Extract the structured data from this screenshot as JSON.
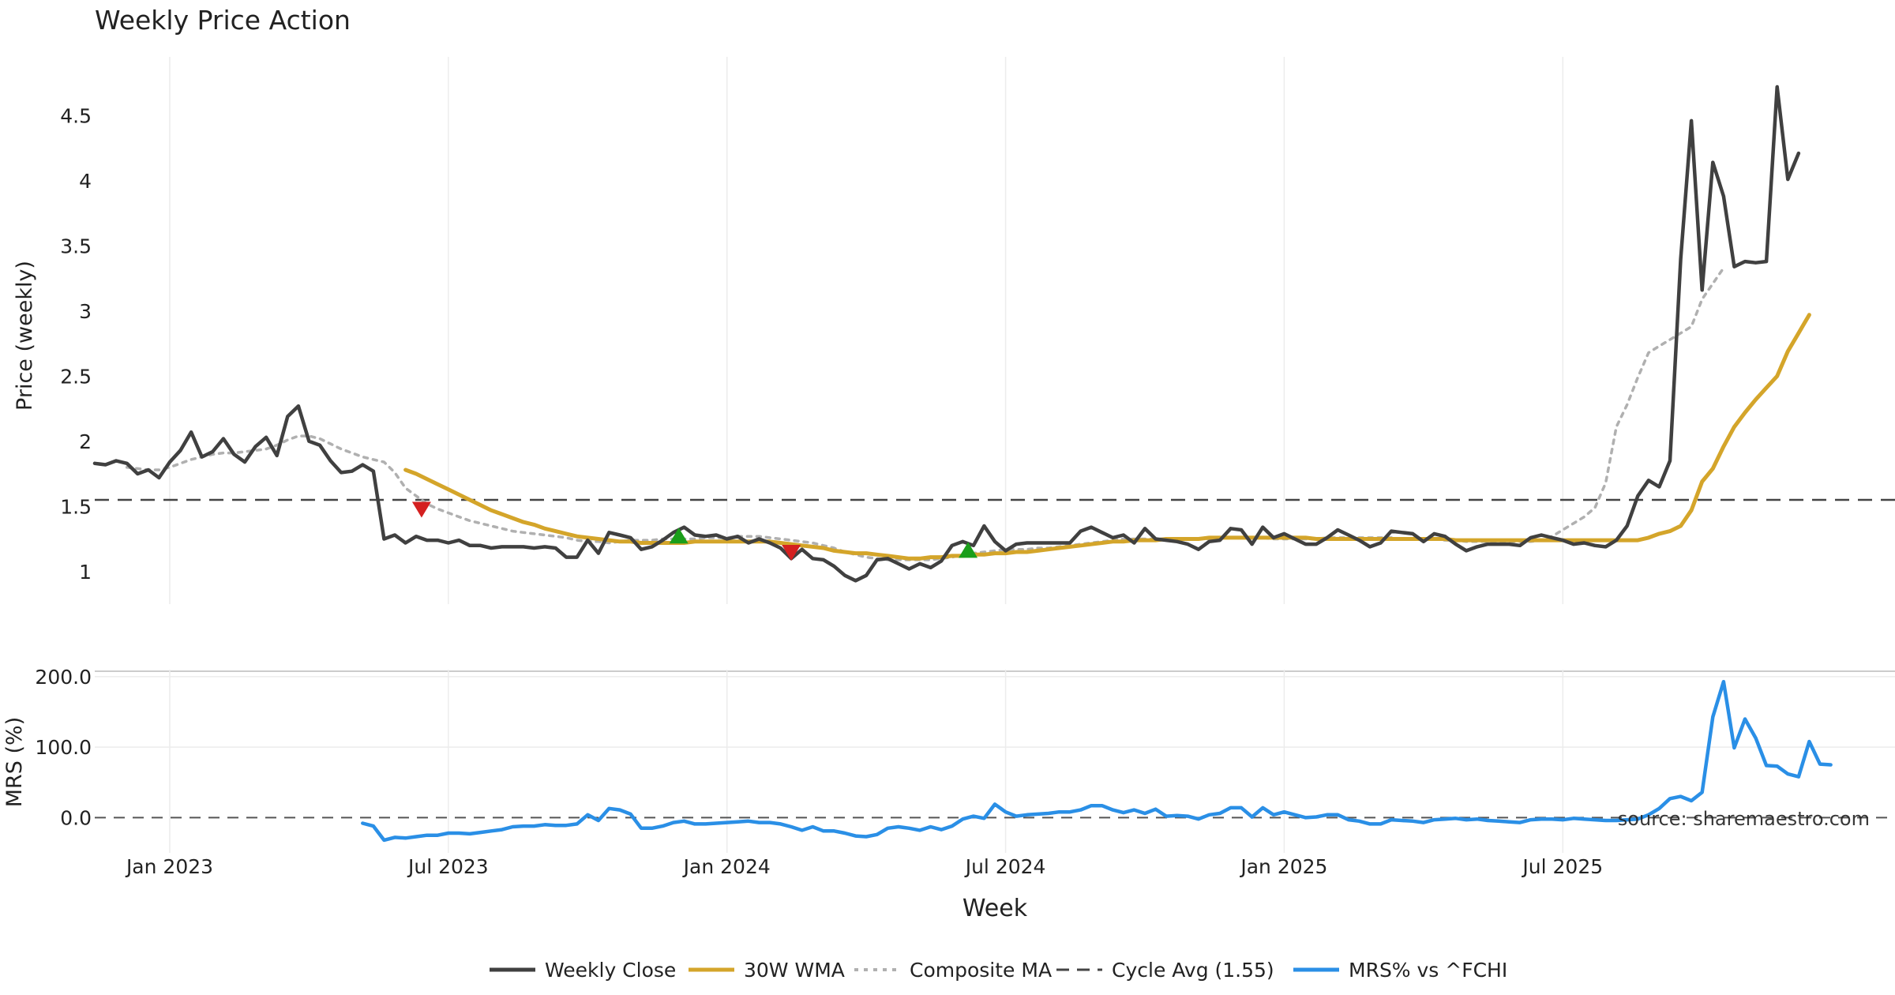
{
  "chart_data": {
    "type": "line",
    "title": "Weekly Price Action",
    "xlabel": "Week",
    "x_ticks": [
      "Jan 2023",
      "Jul 2023",
      "Jan 2024",
      "Jul 2024",
      "Jan 2025",
      "Jul 2025"
    ],
    "x_tick_weeks": [
      5,
      31,
      57,
      83,
      109,
      135
    ],
    "x_range_weeks": [
      -2,
      166
    ],
    "watermark": "source: sharemaestro.com",
    "panels": [
      {
        "id": "price",
        "ylabel": "Price (weekly)",
        "ylim": [
          0.75,
          4.95
        ],
        "y_ticks": [
          1,
          1.5,
          2,
          2.5,
          3,
          3.5,
          4,
          4.5
        ],
        "y_tick_labels": [
          "1",
          "1.5",
          "2",
          "2.5",
          "3",
          "3.5",
          "4",
          "4.5"
        ],
        "reference_line": {
          "name": "Cycle Avg (1.55)",
          "value": 1.55
        },
        "series": [
          {
            "name": "Weekly Close",
            "color": "#404040",
            "x_start": -2,
            "values": [
              1.83,
              1.82,
              1.85,
              1.83,
              1.75,
              1.78,
              1.72,
              1.84,
              1.93,
              2.07,
              1.88,
              1.92,
              2.02,
              1.9,
              1.84,
              1.96,
              2.03,
              1.89,
              2.19,
              2.27,
              2.0,
              1.97,
              1.85,
              1.76,
              1.77,
              1.82,
              1.77,
              1.25,
              1.28,
              1.22,
              1.27,
              1.24,
              1.24,
              1.22,
              1.24,
              1.2,
              1.2,
              1.18,
              1.19,
              1.19,
              1.19,
              1.18,
              1.19,
              1.18,
              1.11,
              1.11,
              1.24,
              1.14,
              1.3,
              1.28,
              1.26,
              1.17,
              1.19,
              1.24,
              1.3,
              1.34,
              1.28,
              1.27,
              1.28,
              1.25,
              1.27,
              1.22,
              1.25,
              1.22,
              1.18,
              1.1,
              1.17,
              1.1,
              1.09,
              1.04,
              0.97,
              0.93,
              0.97,
              1.09,
              1.1,
              1.06,
              1.02,
              1.06,
              1.03,
              1.08,
              1.2,
              1.23,
              1.2,
              1.35,
              1.23,
              1.16,
              1.21,
              1.22,
              1.22,
              1.22,
              1.22,
              1.22,
              1.31,
              1.34,
              1.3,
              1.26,
              1.28,
              1.22,
              1.33,
              1.25,
              1.24,
              1.23,
              1.21,
              1.17,
              1.23,
              1.24,
              1.33,
              1.32,
              1.21,
              1.34,
              1.26,
              1.29,
              1.25,
              1.21,
              1.21,
              1.26,
              1.32,
              1.28,
              1.24,
              1.19,
              1.22,
              1.31,
              1.3,
              1.29,
              1.23,
              1.29,
              1.27,
              1.21,
              1.16,
              1.19,
              1.21,
              1.21,
              1.21,
              1.2,
              1.26,
              1.28,
              1.26,
              1.24,
              1.21,
              1.22,
              1.2,
              1.19,
              1.24,
              1.35,
              1.58,
              1.7,
              1.65,
              1.85,
              3.4,
              4.46,
              3.16,
              4.14,
              3.88,
              3.34,
              3.38,
              3.37,
              3.38,
              4.72,
              4.01,
              4.21
            ]
          },
          {
            "name": "30W WMA",
            "color": "#d4a52a",
            "x_start": 27,
            "values": [
              1.78,
              1.75,
              1.71,
              1.67,
              1.63,
              1.59,
              1.55,
              1.51,
              1.47,
              1.44,
              1.41,
              1.38,
              1.36,
              1.33,
              1.31,
              1.29,
              1.27,
              1.26,
              1.25,
              1.24,
              1.23,
              1.23,
              1.22,
              1.22,
              1.22,
              1.22,
              1.22,
              1.23,
              1.23,
              1.23,
              1.23,
              1.23,
              1.23,
              1.23,
              1.23,
              1.22,
              1.21,
              1.2,
              1.19,
              1.18,
              1.16,
              1.15,
              1.14,
              1.14,
              1.13,
              1.12,
              1.11,
              1.1,
              1.1,
              1.11,
              1.11,
              1.12,
              1.12,
              1.13,
              1.13,
              1.14,
              1.14,
              1.15,
              1.15,
              1.16,
              1.17,
              1.18,
              1.19,
              1.2,
              1.21,
              1.22,
              1.23,
              1.23,
              1.24,
              1.24,
              1.24,
              1.25,
              1.25,
              1.25,
              1.25,
              1.26,
              1.26,
              1.26,
              1.26,
              1.26,
              1.26,
              1.26,
              1.26,
              1.26,
              1.26,
              1.25,
              1.25,
              1.25,
              1.25,
              1.25,
              1.25,
              1.25,
              1.25,
              1.25,
              1.25,
              1.25,
              1.25,
              1.25,
              1.24,
              1.24,
              1.24,
              1.24,
              1.24,
              1.24,
              1.24,
              1.24,
              1.24,
              1.24,
              1.24,
              1.24,
              1.24,
              1.24,
              1.24,
              1.24,
              1.24,
              1.24,
              1.26,
              1.29,
              1.31,
              1.35,
              1.47,
              1.69,
              1.79,
              1.96,
              2.11,
              2.22,
              2.32,
              2.41,
              2.5,
              2.69,
              2.83,
              2.97
            ]
          },
          {
            "name": "Composite MA",
            "color": "#b0b0b0",
            "x_start": 1,
            "values": [
              1.8,
              1.79,
              1.78,
              1.78,
              1.8,
              1.83,
              1.86,
              1.88,
              1.9,
              1.91,
              1.91,
              1.92,
              1.93,
              1.94,
              1.97,
              2.01,
              2.04,
              2.04,
              2.02,
              1.98,
              1.94,
              1.91,
              1.88,
              1.86,
              1.84,
              1.76,
              1.64,
              1.58,
              1.52,
              1.48,
              1.45,
              1.42,
              1.39,
              1.37,
              1.35,
              1.33,
              1.31,
              1.3,
              1.29,
              1.28,
              1.27,
              1.26,
              1.24,
              1.23,
              1.23,
              1.22,
              1.23,
              1.24,
              1.24,
              1.24,
              1.25,
              1.25,
              1.25,
              1.25,
              1.26,
              1.26,
              1.26,
              1.27,
              1.27,
              1.27,
              1.26,
              1.25,
              1.24,
              1.23,
              1.22,
              1.2,
              1.18,
              1.15,
              1.13,
              1.11,
              1.1,
              1.09,
              1.09,
              1.09,
              1.09,
              1.09,
              1.1,
              1.11,
              1.13,
              1.14,
              1.15,
              1.16,
              1.17,
              1.17,
              1.17,
              1.18,
              1.18,
              1.19,
              1.2,
              1.21,
              1.22,
              1.23,
              1.24,
              1.25,
              1.25,
              1.25,
              1.25,
              1.25,
              1.25,
              1.25,
              1.25,
              1.25,
              1.26,
              1.26,
              1.26,
              1.26,
              1.26,
              1.25,
              1.25,
              1.25,
              1.25,
              1.25,
              1.26,
              1.26,
              1.26,
              1.26,
              1.26,
              1.26,
              1.26,
              1.25,
              1.25,
              1.25,
              1.25,
              1.24,
              1.24,
              1.23,
              1.23,
              1.23,
              1.23,
              1.23,
              1.23,
              1.23,
              1.24,
              1.27,
              1.32,
              1.37,
              1.42,
              1.49,
              1.68,
              2.11,
              2.28,
              2.49,
              2.68,
              2.73,
              2.78,
              2.83,
              2.88,
              3.09,
              3.21,
              3.33
            ]
          }
        ],
        "signals": [
          {
            "type": "sell",
            "x_week": 28.5,
            "value": 1.48,
            "color": "#d42020"
          },
          {
            "type": "buy",
            "x_week": 52.5,
            "value": 1.27,
            "color": "#1a9e1a"
          },
          {
            "type": "sell",
            "x_week": 63,
            "value": 1.15,
            "color": "#d42020"
          },
          {
            "type": "buy",
            "x_week": 79.5,
            "value": 1.16,
            "color": "#1a9e1a"
          }
        ]
      },
      {
        "id": "mrs",
        "ylabel": "MRS (%)",
        "ylim": [
          -50,
          210
        ],
        "y_ticks": [
          0,
          100,
          200
        ],
        "y_tick_labels": [
          "0.0",
          "100.0",
          "200.0"
        ],
        "reference_line": {
          "name": "zero",
          "value": 0
        },
        "series": [
          {
            "name": "MRS% vs ^FCHI",
            "color": "#2a8fe6",
            "x_start": 23,
            "values": [
              -8,
              -12,
              -32,
              -28,
              -29,
              -27,
              -25,
              -25,
              -22,
              -22,
              -23,
              -21,
              -19,
              -17,
              -13,
              -12,
              -12,
              -10,
              -11,
              -11,
              -9,
              4,
              -4,
              13,
              11,
              5,
              -15,
              -15,
              -12,
              -7,
              -5,
              -9,
              -9,
              -8,
              -7,
              -6,
              -5,
              -7,
              -7,
              -9,
              -13,
              -18,
              -13,
              -19,
              -19,
              -22,
              -26,
              -27,
              -24,
              -15,
              -13,
              -15,
              -18,
              -13,
              -17,
              -12,
              -2,
              2,
              -1,
              19,
              8,
              2,
              4,
              5,
              6,
              8,
              8,
              11,
              17,
              17,
              11,
              7,
              11,
              6,
              12,
              2,
              3,
              2,
              -2,
              4,
              6,
              14,
              14,
              1,
              14,
              4,
              8,
              4,
              0,
              1,
              4,
              4,
              -3,
              -5,
              -9,
              -9,
              -3,
              -4,
              -5,
              -7,
              -3,
              -2,
              -1,
              -3,
              -2,
              -4,
              -5,
              -6,
              -7,
              -3,
              -2,
              -2,
              -3,
              -1,
              -2,
              -3,
              -4,
              -4,
              -3,
              -2,
              4,
              13,
              27,
              30,
              24,
              36,
              143,
              193,
              99,
              140,
              113,
              74,
              73,
              62,
              58,
              108,
              76,
              75
            ]
          }
        ]
      }
    ],
    "legend": {
      "placement": "bottom-center",
      "entries": [
        {
          "label": "Weekly Close",
          "style": "solid",
          "color": "#404040"
        },
        {
          "label": "30W WMA",
          "style": "solid",
          "color": "#d4a52a"
        },
        {
          "label": "Composite MA",
          "style": "dotted",
          "color": "#b0b0b0"
        },
        {
          "label": "Cycle Avg (1.55)",
          "style": "dashed",
          "color": "#444444"
        },
        {
          "label": "MRS% vs ^FCHI",
          "style": "solid",
          "color": "#2a8fe6"
        }
      ]
    }
  }
}
